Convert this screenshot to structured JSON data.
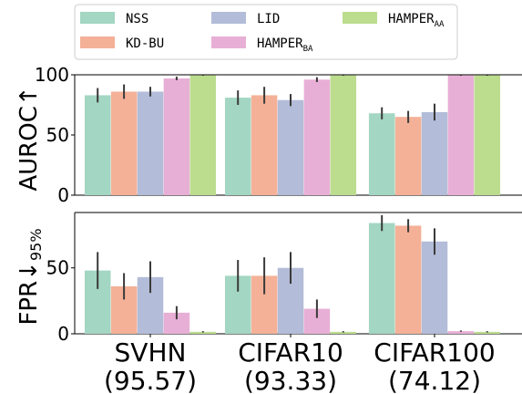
{
  "chart_data": [
    {
      "type": "bar",
      "ylabel": "AUROC",
      "ylabel_arrow": "↑",
      "ylim": [
        0,
        100
      ],
      "yticks": [
        0,
        50,
        100
      ],
      "categories": [
        "SVHN",
        "CIFAR10",
        "CIFAR100"
      ],
      "series": [
        {
          "name": "NSS",
          "values": [
            83,
            81,
            68
          ],
          "err": [
            6,
            6,
            5
          ],
          "color": "#a3d6c3"
        },
        {
          "name": "KD-BU",
          "values": [
            86,
            83,
            65
          ],
          "err": [
            6,
            7,
            5
          ],
          "color": "#f4b197"
        },
        {
          "name": "LID",
          "values": [
            86,
            79,
            69
          ],
          "err": [
            4,
            5,
            7
          ],
          "color": "#b3bcd8"
        },
        {
          "name": "HAMPER",
          "sub": "BA",
          "values": [
            97,
            96,
            99.5
          ],
          "err": [
            1.5,
            2,
            0.3
          ],
          "color": "#e8afd6"
        },
        {
          "name": "HAMPER",
          "sub": "AA",
          "values": [
            99.5,
            99.5,
            99.5
          ],
          "err": [
            0.3,
            0.3,
            0.3
          ],
          "color": "#bcdc8e"
        }
      ]
    },
    {
      "type": "bar",
      "ylabel": "FPR",
      "ylabel_arrow": "↓",
      "ylabel_sub": "95%",
      "ylim": [
        0,
        92
      ],
      "yticks": [
        0,
        50
      ],
      "categories": [
        "SVHN",
        "CIFAR10",
        "CIFAR100"
      ],
      "series": [
        {
          "name": "NSS",
          "values": [
            48,
            44,
            84
          ],
          "err": [
            14,
            12,
            6
          ],
          "color": "#a3d6c3"
        },
        {
          "name": "KD-BU",
          "values": [
            36,
            44,
            82
          ],
          "err": [
            10,
            14,
            5
          ],
          "color": "#f4b197"
        },
        {
          "name": "LID",
          "values": [
            43,
            50,
            70
          ],
          "err": [
            12,
            12,
            10
          ],
          "color": "#b3bcd8"
        },
        {
          "name": "HAMPER",
          "sub": "BA",
          "values": [
            16,
            19,
            2
          ],
          "err": [
            5,
            7,
            0.5
          ],
          "color": "#e8afd6"
        },
        {
          "name": "HAMPER",
          "sub": "AA",
          "values": [
            1.5,
            1.5,
            1.5
          ],
          "err": [
            0.5,
            0.5,
            0.5
          ],
          "color": "#bcdc8e"
        }
      ]
    }
  ],
  "x_category_values": [
    "(95.57)",
    "(93.33)",
    "(74.12)"
  ]
}
